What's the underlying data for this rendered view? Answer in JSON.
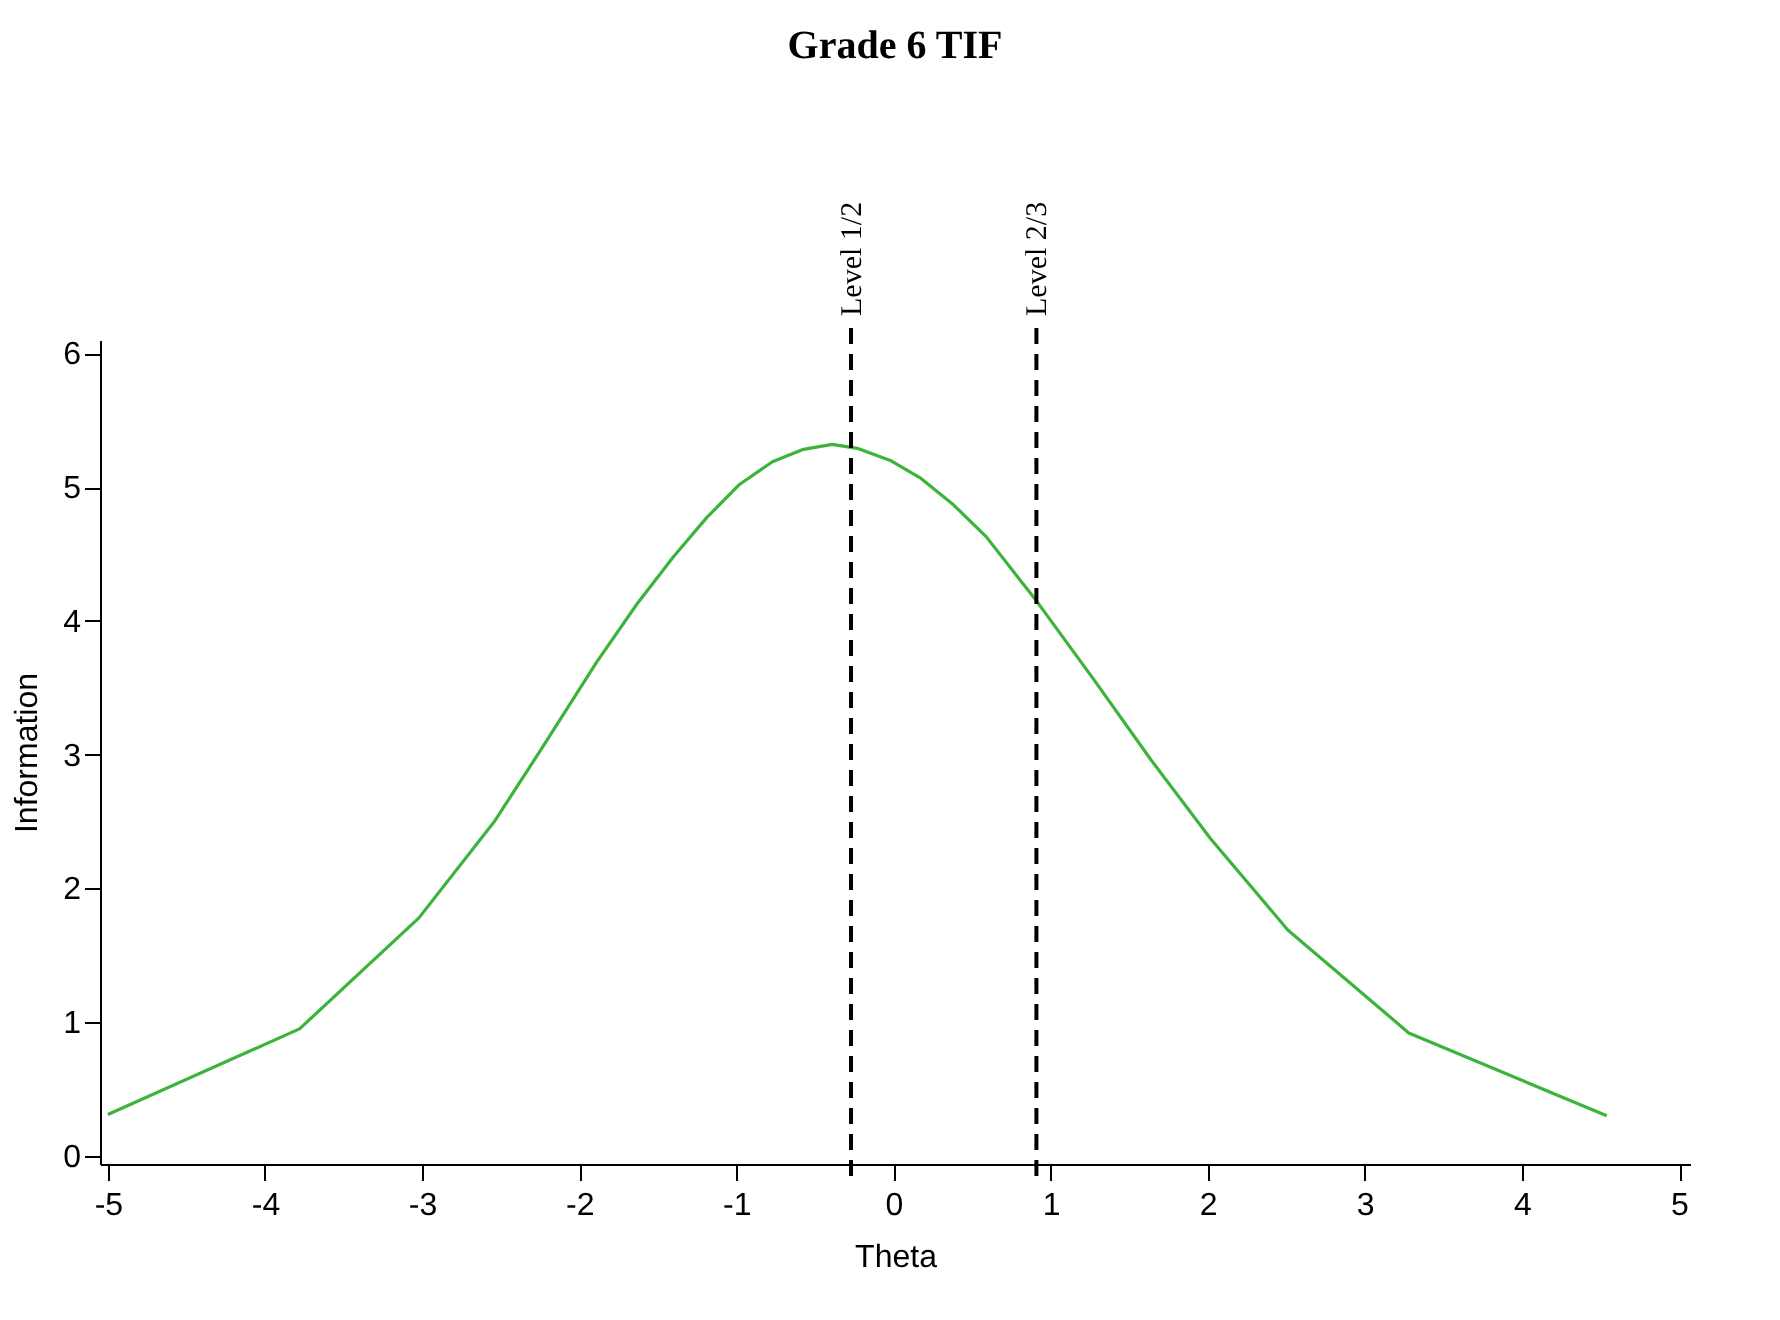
{
  "chart_data": {
    "type": "line",
    "title": "Grade 6 TIF",
    "xlabel": "Theta",
    "ylabel": "Information",
    "x": [
      -5.0,
      -3.78,
      -3.02,
      -2.54,
      -2.22,
      -1.89,
      -1.63,
      -1.4,
      -1.19,
      -0.98,
      -0.77,
      -0.58,
      -0.39,
      -0.23,
      -0.02,
      0.17,
      0.38,
      0.59,
      0.91,
      1.27,
      1.64,
      2.02,
      2.51,
      3.28,
      4.54
    ],
    "series": [
      {
        "color": "#3cb43c",
        "values": [
          0.31,
          0.95,
          1.78,
          2.5,
          3.08,
          3.69,
          4.13,
          4.48,
          4.77,
          5.02,
          5.19,
          5.28,
          5.32,
          5.29,
          5.2,
          5.07,
          4.87,
          4.63,
          4.15,
          3.57,
          2.96,
          2.37,
          1.69,
          0.92,
          0.3
        ]
      }
    ],
    "xlim": [
      -5.05,
      5.07
    ],
    "ylim": [
      -0.06,
      6.1
    ],
    "xticks": [
      -5,
      -4,
      -3,
      -2,
      -1,
      0,
      1,
      2,
      3,
      4,
      5
    ],
    "yticks": [
      0,
      1,
      2,
      3,
      4,
      5,
      6
    ],
    "ref_lines": [
      {
        "axis": "x",
        "value": -0.27,
        "label": "Level 1/2",
        "color": "#000000",
        "line_style": "dashed"
      },
      {
        "axis": "x",
        "value": 0.91,
        "label": "Level 2/3",
        "color": "#000000",
        "line_style": "dashed"
      }
    ],
    "grid": false,
    "marker": "none",
    "line_style": "solid"
  }
}
